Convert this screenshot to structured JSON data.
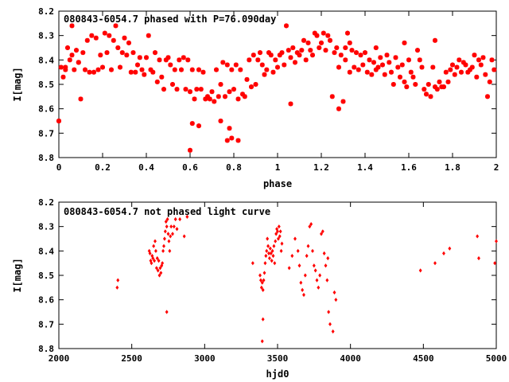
{
  "chart_data": [
    {
      "type": "scatter",
      "title": "080843-6054.7 phased with P=76.090day",
      "xlabel": "phase",
      "ylabel": "I[mag]",
      "xlim": [
        0,
        2
      ],
      "ylim": [
        8.8,
        8.2
      ],
      "y_inverted": true,
      "x_ticks": [
        "0",
        "0.2",
        "0.4",
        "0.6",
        "0.8",
        "1",
        "1.2",
        "1.4",
        "1.6",
        "1.8",
        "2"
      ],
      "y_ticks": [
        "8.2",
        "8.3",
        "8.4",
        "8.5",
        "8.6",
        "8.7",
        "8.8"
      ],
      "marker": "star",
      "color": "#ff0000",
      "grid": false,
      "series": [
        {
          "x": [
            0.0,
            0.01,
            0.02,
            0.03,
            0.04,
            0.05,
            0.06,
            0.07,
            0.08,
            0.09,
            0.1,
            0.11,
            0.12,
            0.13,
            0.14,
            0.15,
            0.16,
            0.17,
            0.18,
            0.19,
            0.2,
            0.21,
            0.22,
            0.23,
            0.24,
            0.25,
            0.26,
            0.27,
            0.28,
            0.29,
            0.3,
            0.31,
            0.32,
            0.33,
            0.34,
            0.35,
            0.36,
            0.37,
            0.38,
            0.39,
            0.4,
            0.41,
            0.42,
            0.43,
            0.44,
            0.45,
            0.46,
            0.47,
            0.48,
            0.49,
            0.5,
            0.51,
            0.52,
            0.53,
            0.54,
            0.55,
            0.56,
            0.57,
            0.58,
            0.59,
            0.6,
            0.61,
            0.62,
            0.63,
            0.64,
            0.65,
            0.66,
            0.67,
            0.68,
            0.69,
            0.7,
            0.71,
            0.72,
            0.73,
            0.74,
            0.75,
            0.76,
            0.77,
            0.78,
            0.79,
            0.8,
            0.81,
            0.82,
            0.83,
            0.84,
            0.85,
            0.86,
            0.87,
            0.88,
            0.89,
            0.9,
            0.91,
            0.92,
            0.93,
            0.94,
            0.95,
            0.96,
            0.97,
            0.98,
            0.99,
            0.6,
            0.61,
            0.64,
            0.74,
            0.77,
            0.78,
            0.79,
            0.82,
            0.0,
            0.03,
            0.06,
            0.09,
            1.0,
            1.01,
            1.02,
            1.03,
            1.04,
            1.05,
            1.06,
            1.07,
            1.08,
            1.09,
            1.1,
            1.11,
            1.12,
            1.13,
            1.14,
            1.15,
            1.16,
            1.17,
            1.18,
            1.19,
            1.2,
            1.21,
            1.22,
            1.23,
            1.24,
            1.25,
            1.26,
            1.27,
            1.28,
            1.29,
            1.3,
            1.31,
            1.32,
            1.33,
            1.34,
            1.35,
            1.36,
            1.37,
            1.38,
            1.39,
            1.4,
            1.41,
            1.42,
            1.43,
            1.44,
            1.45,
            1.46,
            1.47,
            1.48,
            1.49,
            1.5,
            1.51,
            1.52,
            1.53,
            1.54,
            1.55,
            1.56,
            1.57,
            1.58,
            1.59,
            1.6,
            1.61,
            1.62,
            1.63,
            1.64,
            1.65,
            1.66,
            1.67,
            1.68,
            1.69,
            1.7,
            1.71,
            1.72,
            1.73,
            1.74,
            1.75,
            1.76,
            1.77,
            1.78,
            1.79,
            1.8,
            1.81,
            1.82,
            1.83,
            1.84,
            1.85,
            1.86,
            1.87,
            1.88,
            1.89,
            1.9,
            1.91,
            1.92,
            1.93,
            1.94,
            1.95,
            1.96,
            1.97,
            1.98,
            1.99,
            1.28,
            1.31,
            1.33,
            1.06,
            1.45,
            1.58,
            1.72
          ],
          "y": [
            8.65,
            8.43,
            8.47,
            8.44,
            8.35,
            8.4,
            8.26,
            8.44,
            8.36,
            8.41,
            8.56,
            8.37,
            8.44,
            8.32,
            8.45,
            8.3,
            8.45,
            8.31,
            8.44,
            8.38,
            8.43,
            8.29,
            8.37,
            8.3,
            8.44,
            8.32,
            8.26,
            8.35,
            8.43,
            8.37,
            8.31,
            8.38,
            8.33,
            8.45,
            8.37,
            8.45,
            8.42,
            8.39,
            8.44,
            8.46,
            8.39,
            8.3,
            8.44,
            8.45,
            8.37,
            8.49,
            8.4,
            8.47,
            8.52,
            8.4,
            8.39,
            8.42,
            8.5,
            8.44,
            8.52,
            8.4,
            8.44,
            8.39,
            8.52,
            8.4,
            8.53,
            8.44,
            8.56,
            8.52,
            8.44,
            8.52,
            8.45,
            8.56,
            8.55,
            8.56,
            8.53,
            8.57,
            8.44,
            8.55,
            8.5,
            8.41,
            8.55,
            8.42,
            8.53,
            8.44,
            8.52,
            8.42,
            8.56,
            8.44,
            8.54,
            8.55,
            8.48,
            8.4,
            8.51,
            8.38,
            8.5,
            8.4,
            8.37,
            8.42,
            8.46,
            8.44,
            8.37,
            8.38,
            8.45,
            8.4,
            8.77,
            8.66,
            8.67,
            8.65,
            8.73,
            8.68,
            8.72,
            8.73,
            8.65,
            8.43,
            8.38,
            8.41,
            8.43,
            8.38,
            8.37,
            8.42,
            8.26,
            8.36,
            8.39,
            8.35,
            8.41,
            8.37,
            8.38,
            8.36,
            8.32,
            8.4,
            8.33,
            8.36,
            8.38,
            8.29,
            8.3,
            8.35,
            8.33,
            8.29,
            8.36,
            8.3,
            8.32,
            8.55,
            8.37,
            8.35,
            8.43,
            8.38,
            8.57,
            8.4,
            8.29,
            8.45,
            8.36,
            8.43,
            8.37,
            8.44,
            8.38,
            8.42,
            8.37,
            8.45,
            8.4,
            8.46,
            8.41,
            8.44,
            8.43,
            8.39,
            8.42,
            8.46,
            8.38,
            8.41,
            8.45,
            8.5,
            8.39,
            8.43,
            8.47,
            8.42,
            8.49,
            8.51,
            8.4,
            8.45,
            8.47,
            8.5,
            8.36,
            8.4,
            8.43,
            8.52,
            8.54,
            8.5,
            8.55,
            8.43,
            8.51,
            8.52,
            8.49,
            8.51,
            8.51,
            8.45,
            8.49,
            8.44,
            8.42,
            8.46,
            8.43,
            8.4,
            8.45,
            8.41,
            8.42,
            8.45,
            8.44,
            8.43,
            8.38,
            8.47,
            8.4,
            8.42,
            8.39,
            8.46,
            8.55,
            8.49,
            8.4,
            8.44,
            8.6,
            8.35,
            8.33,
            8.58,
            8.35,
            8.33,
            8.32
          ]
        }
      ]
    },
    {
      "type": "scatter",
      "title": "080843-6054.7 not phased light curve",
      "xlabel": "hjd0",
      "ylabel": "I[mag]",
      "xlim": [
        2000,
        5000
      ],
      "ylim": [
        8.8,
        8.2
      ],
      "y_inverted": true,
      "x_ticks": [
        "2000",
        "2500",
        "3000",
        "3500",
        "4000",
        "4500",
        "5000"
      ],
      "y_ticks": [
        "8.2",
        "8.3",
        "8.4",
        "8.5",
        "8.6",
        "8.7",
        "8.8"
      ],
      "marker": "diamond",
      "color": "#ff0000",
      "grid": false,
      "series": [
        {
          "x": [
            2400,
            2405,
            2620,
            2625,
            2630,
            2635,
            2640,
            2645,
            2650,
            2655,
            2660,
            2665,
            2670,
            2675,
            2680,
            2685,
            2690,
            2695,
            2700,
            2705,
            2710,
            2715,
            2720,
            2725,
            2730,
            2735,
            2740,
            2745,
            2750,
            2755,
            2760,
            2765,
            2770,
            2780,
            2790,
            2800,
            2810,
            2830,
            2860,
            2880,
            3330,
            3380,
            3385,
            3390,
            3395,
            3400,
            3405,
            3410,
            3415,
            3420,
            3425,
            3430,
            3435,
            3440,
            3445,
            3450,
            3455,
            3460,
            3465,
            3470,
            3475,
            3480,
            3485,
            3490,
            3495,
            3500,
            3505,
            3510,
            3515,
            3520,
            3525,
            3530,
            3580,
            3600,
            3620,
            3640,
            3650,
            3660,
            3670,
            3680,
            3690,
            3700,
            3710,
            3720,
            3730,
            3740,
            3750,
            3760,
            3770,
            3780,
            3790,
            3800,
            3810,
            3820,
            3830,
            3840,
            3845,
            3850,
            3860,
            3880,
            3890,
            3900,
            4480,
            4580,
            4640,
            4680,
            4870,
            4880,
            4990,
            5000,
            2740,
            3400,
            3395
          ],
          "y": [
            8.55,
            8.52,
            8.4,
            8.41,
            8.44,
            8.45,
            8.42,
            8.43,
            8.38,
            8.44,
            8.36,
            8.4,
            8.47,
            8.43,
            8.48,
            8.44,
            8.5,
            8.47,
            8.49,
            8.46,
            8.45,
            8.4,
            8.38,
            8.35,
            8.32,
            8.28,
            8.3,
            8.27,
            8.33,
            8.36,
            8.4,
            8.34,
            8.3,
            8.33,
            8.3,
            8.27,
            8.31,
            8.27,
            8.34,
            8.26,
            8.45,
            8.5,
            8.52,
            8.55,
            8.53,
            8.56,
            8.52,
            8.49,
            8.45,
            8.42,
            8.4,
            8.35,
            8.38,
            8.41,
            8.43,
            8.39,
            8.41,
            8.44,
            8.4,
            8.42,
            8.38,
            8.45,
            8.36,
            8.33,
            8.31,
            8.32,
            8.35,
            8.3,
            8.34,
            8.32,
            8.4,
            8.37,
            8.47,
            8.42,
            8.35,
            8.4,
            8.46,
            8.53,
            8.56,
            8.58,
            8.5,
            8.42,
            8.38,
            8.3,
            8.29,
            8.4,
            8.46,
            8.48,
            8.52,
            8.55,
            8.5,
            8.33,
            8.32,
            8.41,
            8.46,
            8.52,
            8.43,
            8.65,
            8.7,
            8.73,
            8.57,
            8.6,
            8.48,
            8.45,
            8.41,
            8.39,
            8.34,
            8.43,
            8.45,
            8.36,
            8.65,
            8.68,
            8.77
          ]
        }
      ]
    }
  ]
}
